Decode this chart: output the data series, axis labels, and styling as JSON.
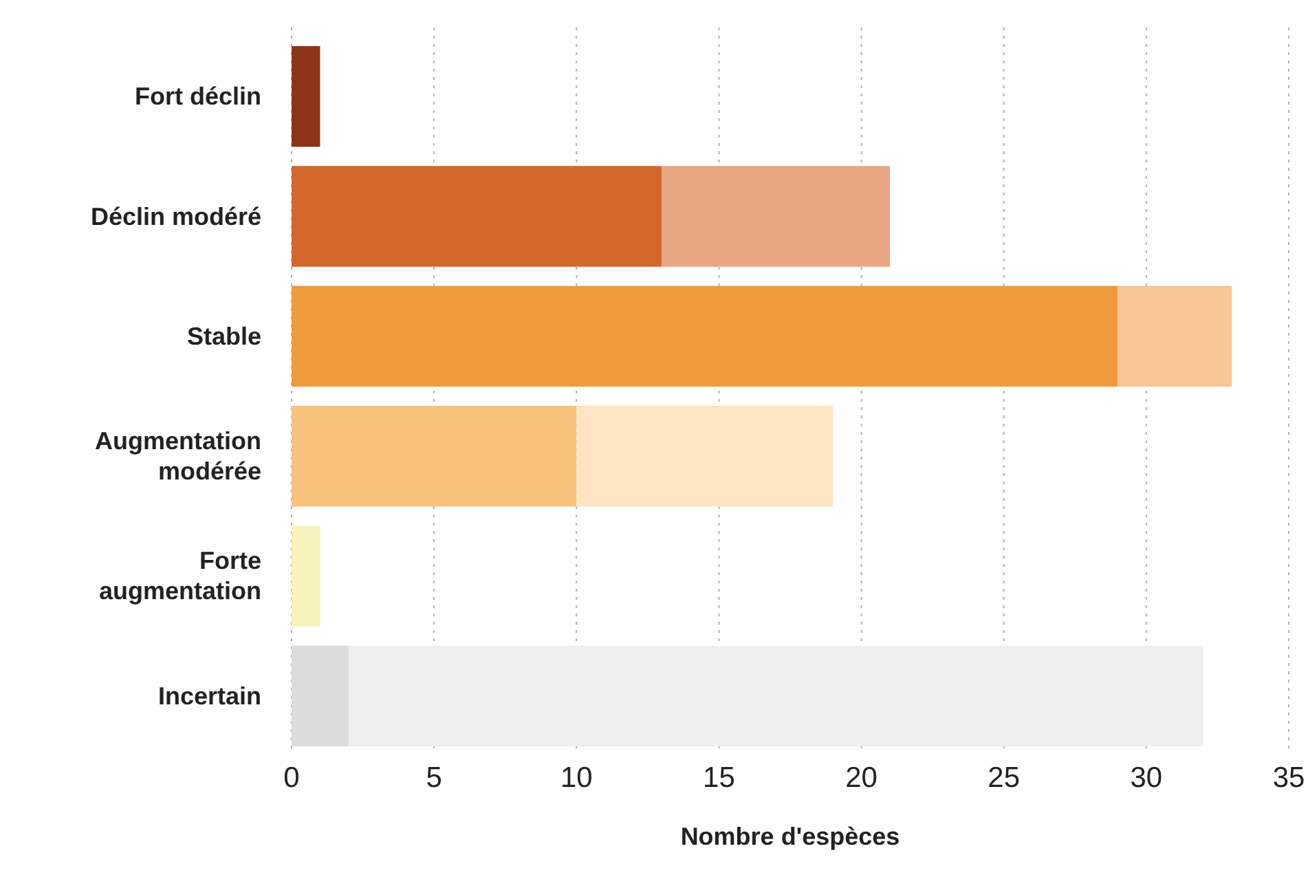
{
  "chart_data": {
    "type": "bar",
    "orientation": "horizontal",
    "stacked": true,
    "xlabel": "Nombre d'espèces",
    "categories": [
      "Fort déclin",
      "Déclin modéré",
      "Stable",
      "Augmentation modérée",
      "Forte augmentation",
      "Incertain"
    ],
    "series": [
      {
        "colors": [
          "#8b3518",
          "#d4682c",
          "#f09a3e",
          "#f8c27c",
          "#f6f3bf",
          "#dcdcdc"
        ],
        "values": [
          1,
          13,
          29,
          10,
          1,
          2
        ]
      },
      {
        "colors": [
          null,
          "#e8a782",
          "#f8c597",
          "#fde4c3",
          null,
          "#efefef"
        ],
        "values": [
          null,
          8,
          4,
          9,
          null,
          30
        ]
      }
    ],
    "xlim": [
      0,
      35
    ],
    "xticks": [
      0,
      5,
      10,
      15,
      20,
      25,
      30,
      35
    ],
    "grid": "x"
  }
}
